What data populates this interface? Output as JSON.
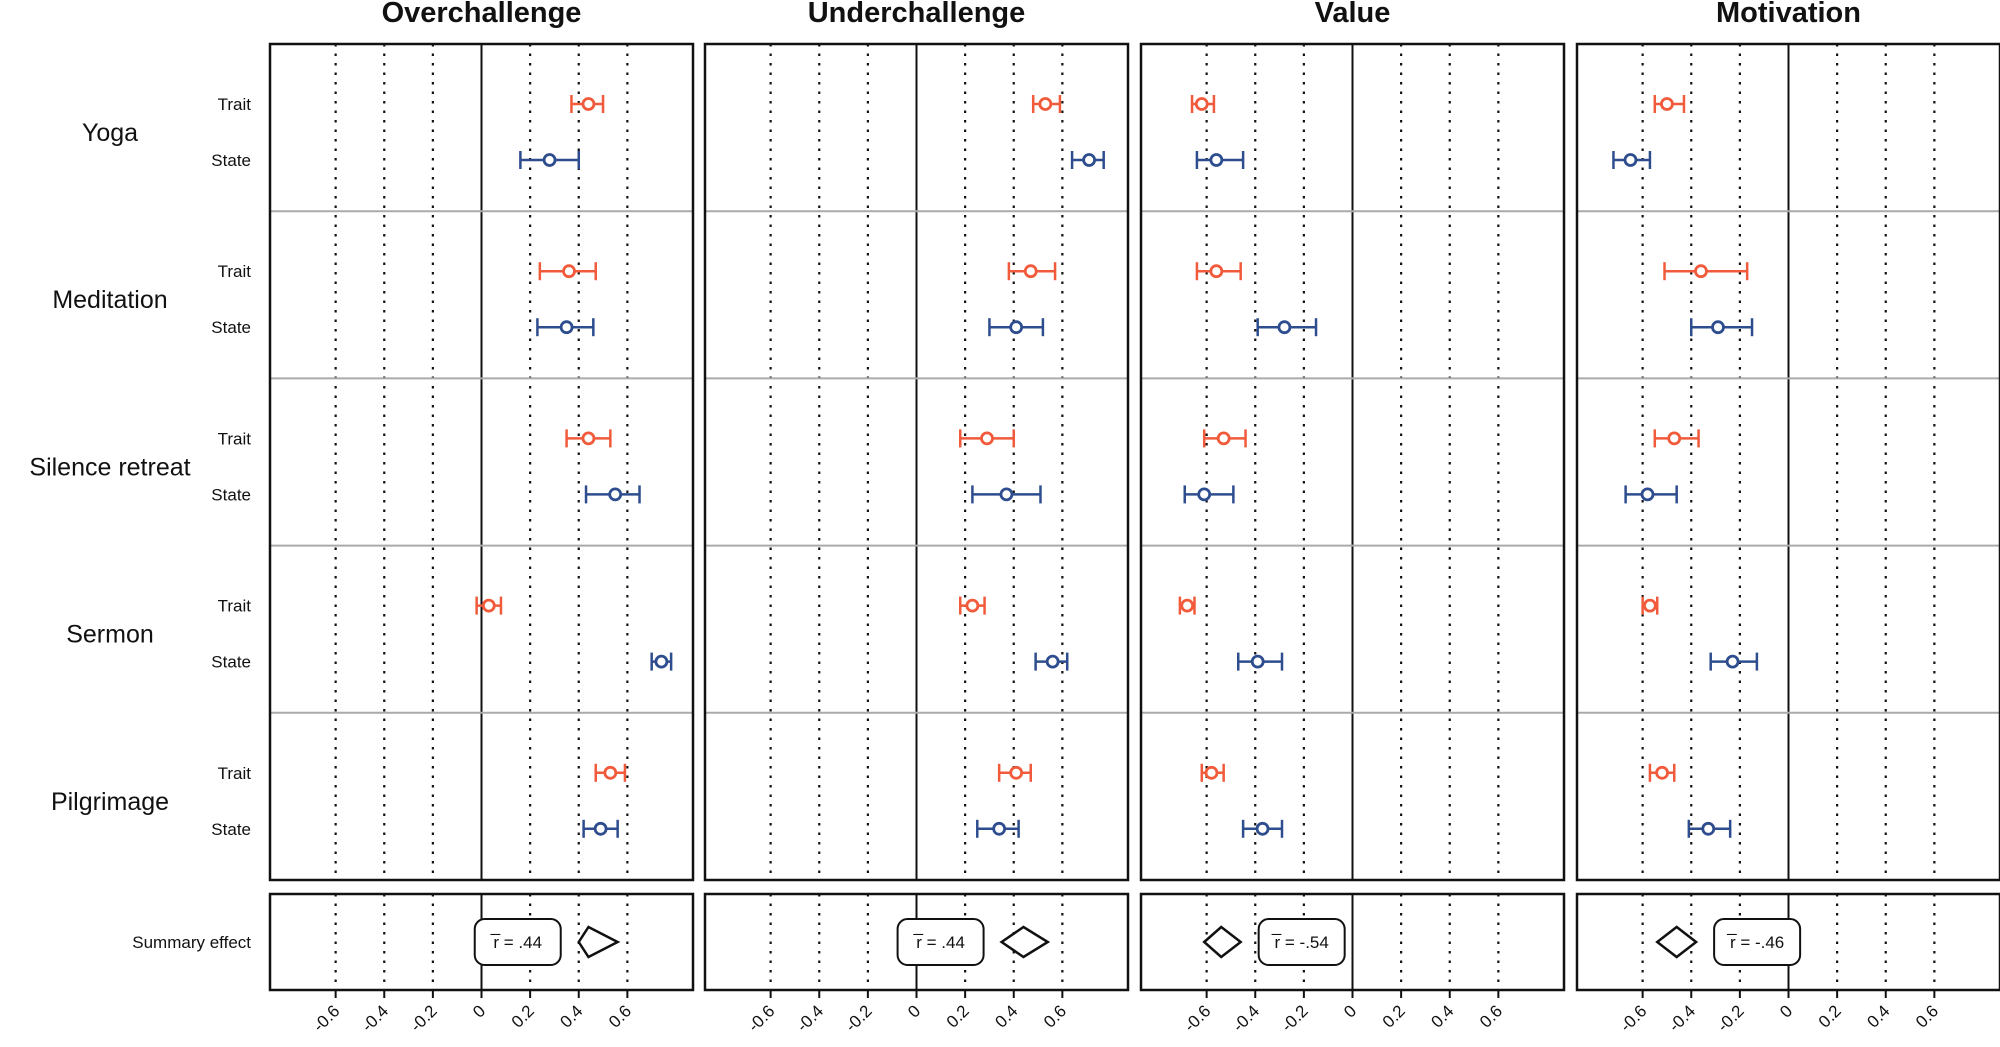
{
  "colors": {
    "trait": "#f15a3a",
    "state": "#2e4d8e",
    "separator": "#aaaaaa",
    "frame": "#111111"
  },
  "summary_label": "Summary effect",
  "chart_data": {
    "type": "forest",
    "xticks": [
      -0.6,
      -0.4,
      -0.2,
      0,
      0.2,
      0.4,
      0.6
    ],
    "xtick_labels": [
      "-0.6",
      "-0.4",
      "-0.2",
      "0",
      "0.2",
      "0.4",
      "0.6"
    ],
    "groups": [
      "Yoga",
      "Meditation",
      "Silence retreat",
      "Sermon",
      "Pilgrimage"
    ],
    "sublabels": [
      "Trait",
      "State"
    ],
    "panels": [
      {
        "title": "Overchallenge",
        "xlim": [
          -0.87,
          0.87
        ],
        "summary": {
          "r": 0.44,
          "lo": 0.4,
          "hi": 0.56,
          "label": "r̅ = .44",
          "label_side": "left"
        },
        "points": [
          {
            "group": "Yoga",
            "type": "Trait",
            "est": 0.44,
            "lo": 0.37,
            "hi": 0.5
          },
          {
            "group": "Yoga",
            "type": "State",
            "est": 0.28,
            "lo": 0.16,
            "hi": 0.4
          },
          {
            "group": "Meditation",
            "type": "Trait",
            "est": 0.36,
            "lo": 0.24,
            "hi": 0.47
          },
          {
            "group": "Meditation",
            "type": "State",
            "est": 0.35,
            "lo": 0.23,
            "hi": 0.46
          },
          {
            "group": "Silence retreat",
            "type": "Trait",
            "est": 0.44,
            "lo": 0.35,
            "hi": 0.53
          },
          {
            "group": "Silence retreat",
            "type": "State",
            "est": 0.55,
            "lo": 0.43,
            "hi": 0.65
          },
          {
            "group": "Sermon",
            "type": "Trait",
            "est": 0.03,
            "lo": -0.02,
            "hi": 0.08
          },
          {
            "group": "Sermon",
            "type": "State",
            "est": 0.74,
            "lo": 0.7,
            "hi": 0.78
          },
          {
            "group": "Pilgrimage",
            "type": "Trait",
            "est": 0.53,
            "lo": 0.47,
            "hi": 0.59
          },
          {
            "group": "Pilgrimage",
            "type": "State",
            "est": 0.49,
            "lo": 0.42,
            "hi": 0.56
          }
        ]
      },
      {
        "title": "Underchallenge",
        "xlim": [
          -0.87,
          0.87
        ],
        "summary": {
          "r": 0.44,
          "lo": 0.35,
          "hi": 0.54,
          "label": "r̅ = .44",
          "label_side": "left"
        },
        "points": [
          {
            "group": "Yoga",
            "type": "Trait",
            "est": 0.53,
            "lo": 0.48,
            "hi": 0.59
          },
          {
            "group": "Yoga",
            "type": "State",
            "est": 0.71,
            "lo": 0.64,
            "hi": 0.77
          },
          {
            "group": "Meditation",
            "type": "Trait",
            "est": 0.47,
            "lo": 0.38,
            "hi": 0.57
          },
          {
            "group": "Meditation",
            "type": "State",
            "est": 0.41,
            "lo": 0.3,
            "hi": 0.52
          },
          {
            "group": "Silence retreat",
            "type": "Trait",
            "est": 0.29,
            "lo": 0.18,
            "hi": 0.4
          },
          {
            "group": "Silence retreat",
            "type": "State",
            "est": 0.37,
            "lo": 0.23,
            "hi": 0.51
          },
          {
            "group": "Sermon",
            "type": "Trait",
            "est": 0.23,
            "lo": 0.18,
            "hi": 0.28
          },
          {
            "group": "Sermon",
            "type": "State",
            "est": 0.56,
            "lo": 0.49,
            "hi": 0.62
          },
          {
            "group": "Pilgrimage",
            "type": "Trait",
            "est": 0.41,
            "lo": 0.34,
            "hi": 0.47
          },
          {
            "group": "Pilgrimage",
            "type": "State",
            "est": 0.34,
            "lo": 0.25,
            "hi": 0.42
          }
        ]
      },
      {
        "title": "Value",
        "xlim": [
          -0.87,
          0.87
        ],
        "summary": {
          "r": -0.54,
          "lo": -0.61,
          "hi": -0.46,
          "label": "r̅ = -.54",
          "label_side": "right"
        },
        "points": [
          {
            "group": "Yoga",
            "type": "Trait",
            "est": -0.62,
            "lo": -0.66,
            "hi": -0.57
          },
          {
            "group": "Yoga",
            "type": "State",
            "est": -0.56,
            "lo": -0.64,
            "hi": -0.45
          },
          {
            "group": "Meditation",
            "type": "Trait",
            "est": -0.56,
            "lo": -0.64,
            "hi": -0.46
          },
          {
            "group": "Meditation",
            "type": "State",
            "est": -0.28,
            "lo": -0.39,
            "hi": -0.15
          },
          {
            "group": "Silence retreat",
            "type": "Trait",
            "est": -0.53,
            "lo": -0.61,
            "hi": -0.44
          },
          {
            "group": "Silence retreat",
            "type": "State",
            "est": -0.61,
            "lo": -0.69,
            "hi": -0.49
          },
          {
            "group": "Sermon",
            "type": "Trait",
            "est": -0.68,
            "lo": -0.71,
            "hi": -0.65
          },
          {
            "group": "Sermon",
            "type": "State",
            "est": -0.39,
            "lo": -0.47,
            "hi": -0.29
          },
          {
            "group": "Pilgrimage",
            "type": "Trait",
            "est": -0.58,
            "lo": -0.62,
            "hi": -0.53
          },
          {
            "group": "Pilgrimage",
            "type": "State",
            "est": -0.37,
            "lo": -0.45,
            "hi": -0.29
          }
        ]
      },
      {
        "title": "Motivation",
        "xlim": [
          -0.87,
          0.87
        ],
        "summary": {
          "r": -0.46,
          "lo": -0.54,
          "hi": -0.38,
          "label": "r̅ = -.46",
          "label_side": "right"
        },
        "points": [
          {
            "group": "Yoga",
            "type": "Trait",
            "est": -0.5,
            "lo": -0.55,
            "hi": -0.43
          },
          {
            "group": "Yoga",
            "type": "State",
            "est": -0.65,
            "lo": -0.72,
            "hi": -0.57
          },
          {
            "group": "Meditation",
            "type": "Trait",
            "est": -0.36,
            "lo": -0.51,
            "hi": -0.17
          },
          {
            "group": "Meditation",
            "type": "State",
            "est": -0.29,
            "lo": -0.4,
            "hi": -0.15
          },
          {
            "group": "Silence retreat",
            "type": "Trait",
            "est": -0.47,
            "lo": -0.55,
            "hi": -0.37
          },
          {
            "group": "Silence retreat",
            "type": "State",
            "est": -0.58,
            "lo": -0.67,
            "hi": -0.46
          },
          {
            "group": "Sermon",
            "type": "Trait",
            "est": -0.57,
            "lo": -0.6,
            "hi": -0.54
          },
          {
            "group": "Sermon",
            "type": "State",
            "est": -0.23,
            "lo": -0.32,
            "hi": -0.13
          },
          {
            "group": "Pilgrimage",
            "type": "Trait",
            "est": -0.52,
            "lo": -0.57,
            "hi": -0.47
          },
          {
            "group": "Pilgrimage",
            "type": "State",
            "est": -0.33,
            "lo": -0.41,
            "hi": -0.24
          }
        ]
      }
    ]
  }
}
